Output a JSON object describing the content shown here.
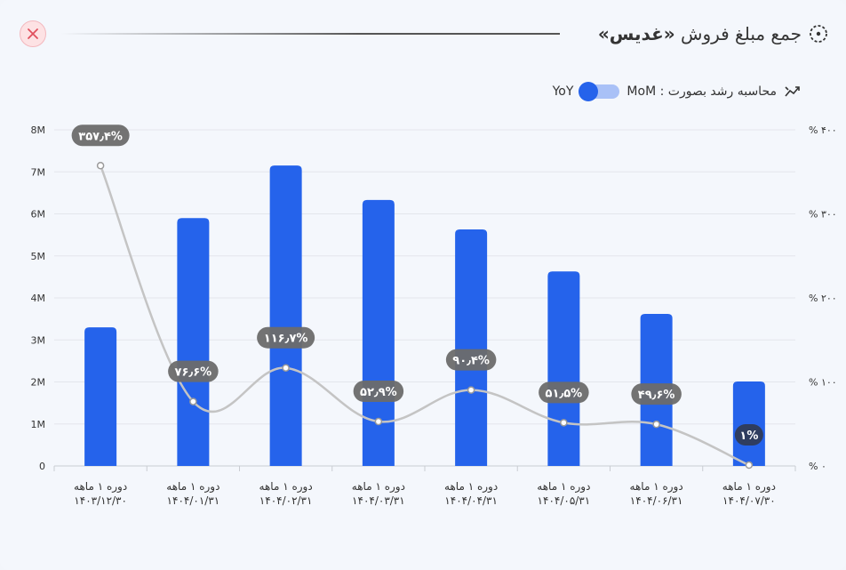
{
  "header": {
    "title_prefix": "جمع مبلغ فروش",
    "title_bold": "«غدیس»",
    "close_icon": "close-icon",
    "title_icon": "dotted-circle-icon"
  },
  "toggle": {
    "label": "محاسبه رشد بصورت : MoM",
    "yoy_label": "YoY",
    "icon": "trending-up-icon",
    "state": "MoM"
  },
  "colors": {
    "bar": "#2563eb",
    "line": "#c4c4c4",
    "pill": "#6b6b6b",
    "pill_dark": "#2f3b57"
  },
  "chart_data": {
    "type": "bar",
    "categories": [
      [
        "دوره ۱ ماهه",
        "۱۴۰۳/۱۲/۳۰"
      ],
      [
        "دوره ۱ ماهه",
        "۱۴۰۴/۰۱/۳۱"
      ],
      [
        "دوره ۱ ماهه",
        "۱۴۰۴/۰۲/۳۱"
      ],
      [
        "دوره ۱ ماهه",
        "۱۴۰۴/۰۳/۳۱"
      ],
      [
        "دوره ۱ ماهه",
        "۱۴۰۴/۰۴/۳۱"
      ],
      [
        "دوره ۱ ماهه",
        "۱۴۰۴/۰۵/۳۱"
      ],
      [
        "دوره ۱ ماهه",
        "۱۴۰۴/۰۶/۳۱"
      ],
      [
        "دوره ۱ ماهه",
        "۱۴۰۴/۰۷/۳۰"
      ]
    ],
    "series": [
      {
        "values": [
          3300000,
          5900000,
          7150000,
          6330000,
          5630000,
          4630000,
          3620000,
          2010000
        ]
      },
      {
        "axis": "right",
        "values": [
          357.4,
          76.6,
          116.7,
          52.9,
          90.4,
          51.5,
          49.6,
          1
        ],
        "labels": [
          "۳۵۷٫۴%",
          "۷۶٫۶%",
          "۱۱۶٫۷%",
          "۵۲٫۹%",
          "۹۰٫۴%",
          "۵۱٫۵%",
          "۴۹٫۶%",
          "۱%"
        ]
      }
    ],
    "y_left": {
      "ylim": [
        0,
        8000000
      ],
      "ticks": [
        0,
        1000000,
        2000000,
        3000000,
        4000000,
        5000000,
        6000000,
        7000000,
        8000000
      ],
      "tick_labels": [
        "0",
        "1M",
        "2M",
        "3M",
        "4M",
        "5M",
        "6M",
        "7M",
        "8M"
      ]
    },
    "y_right": {
      "ylim": [
        0,
        400
      ],
      "ticks": [
        0,
        100,
        200,
        300,
        400
      ],
      "tick_labels": [
        "% ۰",
        "% ۱۰۰",
        "% ۲۰۰",
        "% ۳۰۰",
        "% ۴۰۰"
      ]
    },
    "grid": true
  }
}
